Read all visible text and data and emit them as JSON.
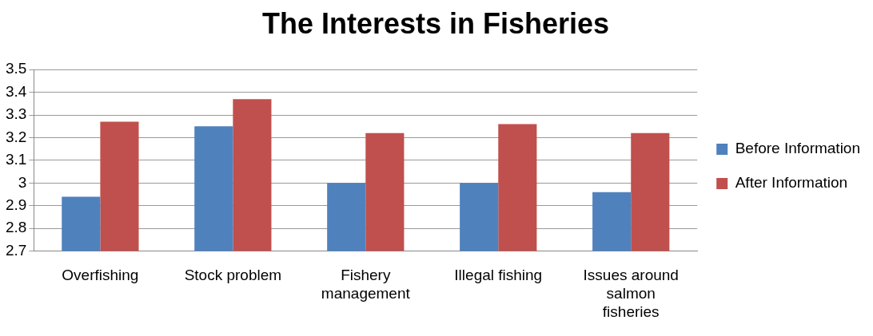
{
  "chart_data": {
    "type": "bar",
    "title": "The Interests in Fisheries",
    "categories": [
      "Overfishing",
      "Stock problem",
      "Fishery management",
      "Illegal fishing",
      "Issues around salmon fisheries"
    ],
    "series": [
      {
        "name": "Before Information",
        "color": "#4f81bd",
        "values": [
          2.94,
          3.25,
          3.0,
          3.0,
          2.96
        ]
      },
      {
        "name": "After Information",
        "color": "#c0504d",
        "values": [
          3.27,
          3.37,
          3.22,
          3.26,
          3.22
        ]
      }
    ],
    "ylim": [
      2.7,
      3.5
    ],
    "yticks": [
      2.7,
      2.8,
      2.9,
      3,
      3.1,
      3.2,
      3.3,
      3.4,
      3.5
    ],
    "grid": "y",
    "legend": "right"
  }
}
